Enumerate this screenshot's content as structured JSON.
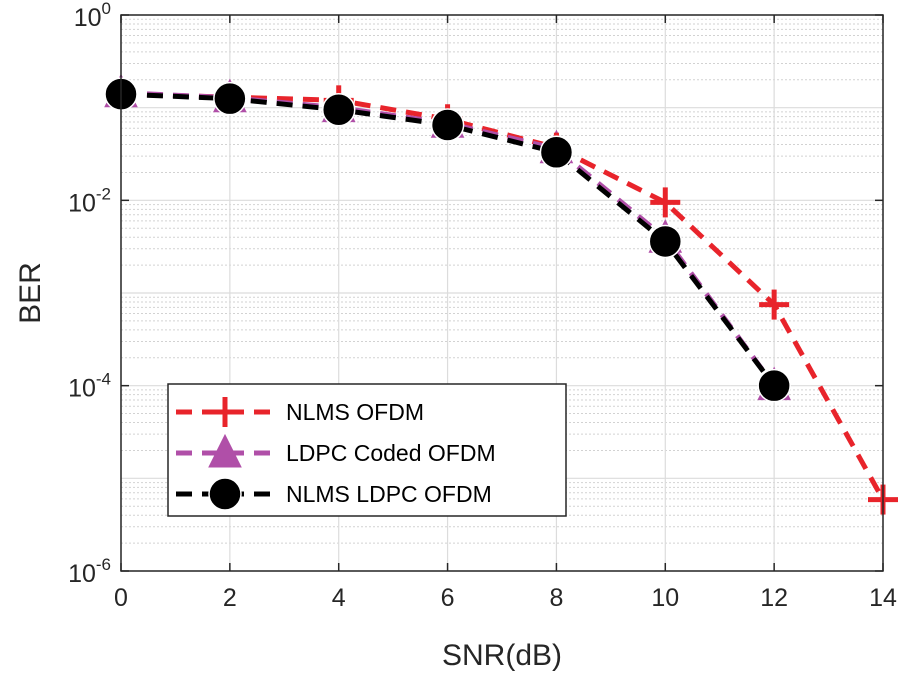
{
  "chart_data": {
    "type": "line",
    "title": "",
    "xlabel": "SNR(dB)",
    "ylabel": "BER",
    "xscale": "linear",
    "yscale": "log",
    "xlim": [
      0,
      14
    ],
    "ylim": [
      1e-06,
      1
    ],
    "x_ticks": [
      0,
      2,
      4,
      6,
      8,
      10,
      12,
      14
    ],
    "x_tick_labels": [
      "0",
      "2",
      "4",
      "6",
      "8",
      "10",
      "12",
      "14"
    ],
    "y_ticks": [
      {
        "value": 1,
        "base": "10",
        "exp": "0"
      },
      {
        "value": 0.01,
        "base": "10",
        "exp": "-2"
      },
      {
        "value": 0.0001,
        "base": "10",
        "exp": "-4"
      },
      {
        "value": 1e-06,
        "base": "10",
        "exp": "-6"
      }
    ],
    "grid": true,
    "legend_position": "bottom-left",
    "series": [
      {
        "name": "NLMS OFDM",
        "color": "#e8242b",
        "marker": "plus",
        "linestyle": "dashed",
        "x": [
          0,
          2,
          4,
          6,
          8,
          10,
          12,
          14
        ],
        "y": [
          0.14,
          0.13,
          0.12,
          0.075,
          0.037,
          0.0095,
          0.00075,
          5.9e-06
        ]
      },
      {
        "name": "LDPC Coded OFDM",
        "color": "#b04fa8",
        "marker": "triangle",
        "linestyle": "dashed",
        "x": [
          0,
          2,
          4,
          6,
          8,
          10,
          12
        ],
        "y": [
          0.145,
          0.128,
          0.1,
          0.068,
          0.036,
          0.0039,
          0.0001
        ]
      },
      {
        "name": "NLMS LDPC OFDM",
        "color": "#000000",
        "marker": "circle",
        "linestyle": "dashed",
        "x": [
          0,
          2,
          4,
          6,
          8,
          10,
          12
        ],
        "y": [
          0.14,
          0.125,
          0.095,
          0.065,
          0.033,
          0.0036,
          0.0001
        ]
      }
    ]
  }
}
